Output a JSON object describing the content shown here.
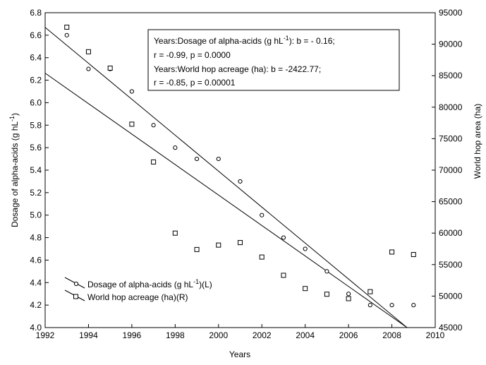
{
  "chart_data": {
    "type": "scatter",
    "title": "",
    "xlabel": "Years",
    "ylabel_left": "Dosage of alpha-acids (g hL",
    "ylabel_left_sup": "-1",
    "ylabel_left_end": ")",
    "ylabel_right": "World hop area (ha)",
    "xlim": [
      1992,
      2010
    ],
    "ylim_left": [
      4.0,
      6.8
    ],
    "ylim_right": [
      45000,
      95000
    ],
    "x_ticks": [
      "1992",
      "1994",
      "1996",
      "1998",
      "2000",
      "2002",
      "2004",
      "2006",
      "2008",
      "2010"
    ],
    "y_left_ticks": [
      "4.0",
      "4.2",
      "4.4",
      "4.6",
      "4.8",
      "5.0",
      "5.2",
      "5.4",
      "5.6",
      "5.8",
      "6.0",
      "6.2",
      "6.4",
      "6.6",
      "6.8"
    ],
    "y_right_ticks": [
      "45000",
      "50000",
      "55000",
      "60000",
      "65000",
      "70000",
      "75000",
      "80000",
      "85000",
      "90000",
      "95000"
    ],
    "grid": false,
    "legend_placement": "bottom-left",
    "series": [
      {
        "name": "Dosage of alpha-acids (g hL-1)(L)",
        "legend_prefix": "Dosage of alpha-acids (g hL",
        "legend_sup": "-1",
        "legend_suffix": ")(L)",
        "marker": "circle",
        "axis": "left",
        "x": [
          1993,
          1994,
          1995,
          1996,
          1997,
          1998,
          1999,
          2000,
          2001,
          2002,
          2003,
          2004,
          2005,
          2006,
          2007,
          2008,
          2009
        ],
        "y": [
          6.6,
          6.3,
          6.3,
          6.1,
          5.8,
          5.6,
          5.5,
          5.5,
          5.3,
          5.0,
          4.8,
          4.7,
          4.5,
          4.3,
          4.2,
          4.2,
          4.2
        ],
        "fit": {
          "x": [
            1992,
            2008.7
          ],
          "y": [
            6.67,
            4.0
          ]
        }
      },
      {
        "name": "World hop acreage (ha)(R)",
        "legend_prefix": "World hop acreage (ha)(R)",
        "legend_sup": "",
        "legend_suffix": "",
        "marker": "square",
        "axis": "right",
        "x": [
          1993,
          1994,
          1995,
          1996,
          1997,
          1998,
          1999,
          2000,
          2001,
          2002,
          2003,
          2004,
          2005,
          2006,
          2007,
          2008,
          2009
        ],
        "y": [
          92700,
          88800,
          86200,
          77300,
          71300,
          60000,
          57400,
          58100,
          58500,
          56200,
          53300,
          51200,
          50300,
          49600,
          50700,
          57000,
          56600
        ],
        "fit": {
          "x": [
            1992,
            2008.7
          ],
          "y": [
            85400,
            45000
          ]
        }
      }
    ],
    "annotation": {
      "line1_a": "Years:Dosage of alpha-acids (g hL",
      "line1_sup": "-1",
      "line1_b": "):    b = - 0.16;",
      "line2": "r = -0.99, p = 0.0000",
      "line3": "Years:World hop acreage (ha):   b = -2422.77;",
      "line4": "r = -0.85, p = 0.00001"
    }
  }
}
